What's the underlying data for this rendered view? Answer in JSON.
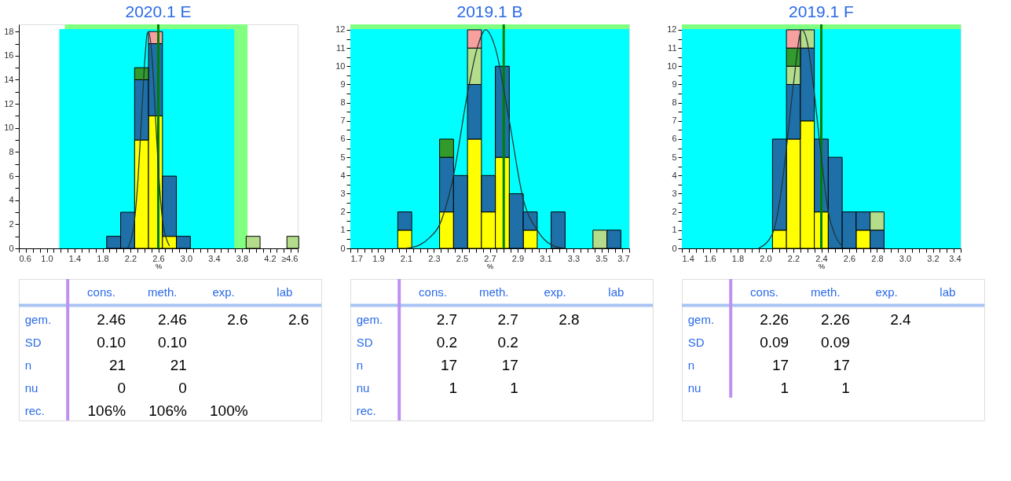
{
  "chart_data": [
    {
      "type": "bar",
      "title": "2020.1 E",
      "xlabel": "%",
      "stacked": true,
      "x": [
        1.96,
        2.16,
        2.36,
        2.56,
        2.76,
        2.96,
        3.16,
        3.36,
        3.56,
        3.76,
        3.96,
        4.16,
        4.36,
        4.53
      ],
      "series": [
        {
          "color": "#ffff00",
          "values": [
            null,
            null,
            9,
            11,
            1,
            null,
            null,
            null,
            null,
            null,
            null,
            null,
            null,
            null
          ]
        },
        {
          "color": "#1f70a8",
          "values": [
            1,
            3,
            5,
            6,
            5,
            1,
            null,
            null,
            null,
            null,
            null,
            null,
            null,
            null
          ]
        },
        {
          "color": "#b3dd8a",
          "values": [
            null,
            null,
            null,
            null,
            null,
            null,
            null,
            null,
            null,
            null,
            1,
            null,
            null,
            1
          ]
        },
        {
          "color": "#339a2c",
          "values": [
            null,
            null,
            1,
            null,
            null,
            null,
            null,
            null,
            null,
            null,
            null,
            null,
            null,
            null
          ]
        },
        {
          "color": "#f8a0a0",
          "values": [
            null,
            null,
            null,
            1,
            null,
            null,
            null,
            null,
            null,
            null,
            null,
            null,
            null,
            null
          ]
        },
        {
          "type": "line",
          "color": "#203838",
          "x": [
            2.16,
            2.26,
            2.31,
            2.36,
            2.41,
            2.44,
            2.46,
            2.51,
            2.56,
            2.61,
            2.66,
            2.76
          ],
          "values": [
            0,
            2.4,
            5.8,
            10.9,
            15.9,
            17.8,
            18,
            15.9,
            10.9,
            5.8,
            2.4,
            0.2
          ]
        }
      ],
      "xlim": [
        0.6,
        4.6
      ],
      "xticks": [
        0.6,
        {
          "value": 0.7,
          "label": null
        },
        {
          "value": 0.8,
          "label": null
        },
        {
          "value": 0.9,
          "label": null
        },
        {
          "value": 1.0,
          "label": "1.0"
        },
        {
          "value": 1.1,
          "label": null
        },
        {
          "value": 1.2,
          "label": null
        },
        {
          "value": 1.3,
          "label": null
        },
        1.4,
        {
          "value": 1.5,
          "label": null
        },
        {
          "value": 1.6,
          "label": null
        },
        {
          "value": 1.7,
          "label": null
        },
        1.8,
        {
          "value": 1.9,
          "label": null
        },
        {
          "value": 2.0,
          "label": null
        },
        {
          "value": 2.1,
          "label": null
        },
        2.2,
        {
          "value": 2.3,
          "label": null
        },
        {
          "value": 2.4,
          "label": null
        },
        {
          "value": 2.5,
          "label": null
        },
        2.6,
        {
          "value": 2.7,
          "label": null
        },
        {
          "value": 2.8,
          "label": null
        },
        {
          "value": 2.9,
          "label": null
        },
        {
          "value": 3.0,
          "label": "3.0"
        },
        {
          "value": 3.1,
          "label": null
        },
        {
          "value": 3.2,
          "label": null
        },
        {
          "value": 3.3,
          "label": null
        },
        3.4,
        {
          "value": 3.5,
          "label": null
        },
        {
          "value": 3.6,
          "label": null
        },
        {
          "value": 3.7,
          "label": null
        },
        3.8,
        {
          "value": 3.9,
          "label": null
        },
        {
          "value": 4.0,
          "label": null
        },
        {
          "value": 4.1,
          "label": null
        },
        4.2,
        {
          "value": 4.3,
          "label": null
        },
        {
          "value": 4.4,
          "label": null
        },
        {
          "value": 4.5,
          "label": null
        },
        {
          "value": 4.6,
          "label": "≥4.6"
        }
      ],
      "ylim": [
        0,
        18.6
      ],
      "yticks": [
        0,
        {
          "value": 1,
          "label": null
        },
        2,
        {
          "value": 3,
          "label": null
        },
        4,
        {
          "value": 5,
          "label": null
        },
        6,
        {
          "value": 7,
          "label": null
        },
        8,
        {
          "value": 9,
          "label": null
        },
        10,
        {
          "value": 11,
          "label": null
        },
        12,
        {
          "value": 13,
          "label": null
        },
        14,
        {
          "value": 15,
          "label": null
        },
        16,
        {
          "value": 17,
          "label": null
        },
        18
      ],
      "bands": [
        {
          "axis": "x",
          "from": 1.26,
          "to": 3.88,
          "color": "#80ff80"
        },
        {
          "axis": "x",
          "from": 1.18,
          "to": 3.69,
          "color": "#00ffff"
        }
      ],
      "ref_lines": [
        {
          "axis": "x",
          "value": 2.6,
          "color": "#008000"
        }
      ]
    },
    {
      "type": "other",
      "categories": [
        "cons.",
        "meth.",
        "exp.",
        "lab"
      ],
      "y_categories": [
        "gem.",
        "SD",
        "n",
        "nu",
        "rec."
      ],
      "cell_labels": [
        [
          "2.46",
          "2.46",
          "2.6",
          "2.6"
        ],
        [
          "0.10",
          "0.10",
          null,
          null
        ],
        [
          "21",
          "21",
          null,
          null
        ],
        [
          "0",
          "0",
          null,
          null
        ],
        [
          "106%",
          "106%",
          "100%",
          null
        ]
      ]
    },
    {
      "type": "bar",
      "title": "2019.1 B",
      "xlabel": "%",
      "stacked": true,
      "x": [
        2.09,
        2.19,
        2.29,
        2.39,
        2.49,
        2.59,
        2.69,
        2.79,
        2.89,
        2.99,
        3.09,
        3.19,
        3.29,
        3.39,
        3.49,
        3.59
      ],
      "series": [
        {
          "color": "#ffff00",
          "values": [
            1,
            null,
            null,
            2,
            null,
            6,
            2,
            5,
            null,
            1,
            null,
            null,
            null,
            null,
            null,
            null
          ]
        },
        {
          "color": "#1f70a8",
          "values": [
            1,
            null,
            null,
            3,
            4,
            3,
            2,
            5,
            3,
            1,
            null,
            2,
            null,
            null,
            null,
            1
          ]
        },
        {
          "color": "#b3dd8a",
          "values": [
            null,
            null,
            null,
            null,
            null,
            2,
            null,
            null,
            null,
            null,
            null,
            null,
            null,
            null,
            1,
            null
          ]
        },
        {
          "color": "#339a2c",
          "values": [
            null,
            null,
            null,
            1,
            null,
            null,
            null,
            null,
            null,
            null,
            null,
            null,
            null,
            null,
            null,
            null
          ]
        },
        {
          "color": "#f8a0a0",
          "values": [
            null,
            null,
            null,
            null,
            null,
            1,
            null,
            null,
            null,
            null,
            null,
            null,
            null,
            null,
            null,
            null
          ]
        },
        {
          "type": "line",
          "color": "#203838",
          "x": [
            2.1,
            2.2,
            2.27,
            2.34,
            2.44,
            2.54,
            2.61,
            2.67,
            2.74,
            2.84,
            2.94,
            3.04,
            3.14,
            3.24
          ],
          "values": [
            0,
            0.2,
            0.6,
            1.3,
            4,
            8.5,
            11,
            12,
            11,
            7,
            2.7,
            1,
            0.2,
            0
          ]
        }
      ],
      "xlim": [
        1.7,
        3.7
      ],
      "xticks": [
        1.7,
        {
          "value": 1.75,
          "label": null
        },
        {
          "value": 1.8,
          "label": null
        },
        {
          "value": 1.85,
          "label": null
        },
        1.9,
        {
          "value": 1.95,
          "label": null
        },
        {
          "value": 2.0,
          "label": null
        },
        {
          "value": 2.05,
          "label": null
        },
        2.1,
        {
          "value": 2.15,
          "label": null
        },
        {
          "value": 2.2,
          "label": null
        },
        {
          "value": 2.25,
          "label": null
        },
        2.3,
        {
          "value": 2.35,
          "label": null
        },
        {
          "value": 2.4,
          "label": null
        },
        {
          "value": 2.45,
          "label": null
        },
        2.5,
        {
          "value": 2.55,
          "label": null
        },
        {
          "value": 2.6,
          "label": null
        },
        {
          "value": 2.65,
          "label": null
        },
        2.7,
        {
          "value": 2.75,
          "label": null
        },
        {
          "value": 2.8,
          "label": null
        },
        {
          "value": 2.85,
          "label": null
        },
        2.9,
        {
          "value": 2.95,
          "label": null
        },
        {
          "value": 3.0,
          "label": null
        },
        {
          "value": 3.05,
          "label": null
        },
        3.1,
        {
          "value": 3.15,
          "label": null
        },
        {
          "value": 3.2,
          "label": null
        },
        {
          "value": 3.25,
          "label": null
        },
        3.3,
        {
          "value": 3.35,
          "label": null
        },
        {
          "value": 3.4,
          "label": null
        },
        {
          "value": 3.45,
          "label": null
        },
        3.5,
        {
          "value": 3.55,
          "label": null
        },
        {
          "value": 3.6,
          "label": null
        },
        {
          "value": 3.65,
          "label": null
        },
        3.7
      ],
      "ylim": [
        0,
        12.3
      ],
      "yticks": [
        0,
        {
          "value": 0.5,
          "label": null
        },
        1,
        {
          "value": 1.5,
          "label": null
        },
        2,
        {
          "value": 2.5,
          "label": null
        },
        3,
        {
          "value": 3.5,
          "label": null
        },
        4,
        {
          "value": 4.5,
          "label": null
        },
        5,
        {
          "value": 5.5,
          "label": null
        },
        6,
        {
          "value": 6.5,
          "label": null
        },
        7,
        {
          "value": 7.5,
          "label": null
        },
        8,
        {
          "value": 8.5,
          "label": null
        },
        9,
        {
          "value": 9.5,
          "label": null
        },
        10,
        {
          "value": 10.5,
          "label": null
        },
        11,
        {
          "value": 11.5,
          "label": null
        },
        12
      ],
      "bands": [
        {
          "axis": "x",
          "from": 1.7,
          "to": 3.7,
          "color": "#80ff80"
        },
        {
          "axis": "x",
          "from": 1.7,
          "to": 3.7,
          "color": "#00ffff"
        }
      ],
      "ref_lines": [
        {
          "axis": "x",
          "value": 2.8,
          "color": "#008000"
        }
      ]
    },
    {
      "type": "other",
      "categories": [
        "cons.",
        "meth.",
        "exp.",
        "lab"
      ],
      "y_categories": [
        "gem.",
        "SD",
        "n",
        "nu",
        "rec."
      ],
      "cell_labels": [
        [
          "2.7",
          "2.7",
          "2.8",
          null
        ],
        [
          "0.2",
          "0.2",
          null,
          null
        ],
        [
          "17",
          "17",
          null,
          null
        ],
        [
          "1",
          "1",
          null,
          null
        ],
        [
          null,
          null,
          null,
          null
        ]
      ]
    },
    {
      "type": "bar",
      "title": "2019.1 F",
      "xlabel": "%",
      "stacked": true,
      "x": [
        2.1,
        2.2,
        2.3,
        2.4,
        2.5,
        2.6,
        2.7,
        2.8
      ],
      "series": [
        {
          "color": "#ffff00",
          "values": [
            1,
            6,
            7,
            2,
            null,
            null,
            1,
            null
          ]
        },
        {
          "color": "#1f70a8",
          "values": [
            5,
            3,
            4,
            4,
            5,
            2,
            1,
            1
          ]
        },
        {
          "color": "#b3dd8a",
          "values": [
            null,
            1,
            1,
            null,
            null,
            null,
            null,
            1
          ]
        },
        {
          "color": "#339a2c",
          "values": [
            null,
            1,
            null,
            null,
            null,
            null,
            null,
            null
          ]
        },
        {
          "color": "#f8a0a0",
          "values": [
            null,
            1,
            null,
            null,
            null,
            null,
            null,
            null
          ]
        },
        {
          "type": "line",
          "color": "#203838",
          "x": [
            1.95,
            2.05,
            2.1,
            2.15,
            2.2,
            2.26,
            2.3,
            2.35,
            2.4,
            2.45,
            2.5,
            2.55
          ],
          "values": [
            0,
            0.8,
            2.5,
            5.5,
            9,
            12,
            11.3,
            8.5,
            5,
            2,
            0.7,
            0.1
          ]
        }
      ],
      "xlim": [
        1.4,
        3.4
      ],
      "xticks": [
        1.4,
        {
          "value": 1.45,
          "label": null
        },
        {
          "value": 1.5,
          "label": null
        },
        {
          "value": 1.55,
          "label": null
        },
        1.6,
        {
          "value": 1.65,
          "label": null
        },
        {
          "value": 1.7,
          "label": null
        },
        {
          "value": 1.75,
          "label": null
        },
        1.8,
        {
          "value": 1.85,
          "label": null
        },
        {
          "value": 1.9,
          "label": null
        },
        {
          "value": 1.95,
          "label": null
        },
        {
          "value": 2.0,
          "label": "2.0"
        },
        {
          "value": 2.05,
          "label": null
        },
        {
          "value": 2.1,
          "label": null
        },
        {
          "value": 2.15,
          "label": null
        },
        2.2,
        {
          "value": 2.25,
          "label": null
        },
        {
          "value": 2.3,
          "label": null
        },
        {
          "value": 2.35,
          "label": null
        },
        2.4,
        {
          "value": 2.45,
          "label": null
        },
        {
          "value": 2.5,
          "label": null
        },
        {
          "value": 2.55,
          "label": null
        },
        2.6,
        {
          "value": 2.65,
          "label": null
        },
        {
          "value": 2.7,
          "label": null
        },
        {
          "value": 2.75,
          "label": null
        },
        2.8,
        {
          "value": 2.85,
          "label": null
        },
        {
          "value": 2.9,
          "label": null
        },
        {
          "value": 2.95,
          "label": null
        },
        {
          "value": 3.0,
          "label": "3.0"
        },
        {
          "value": 3.05,
          "label": null
        },
        {
          "value": 3.1,
          "label": null
        },
        {
          "value": 3.15,
          "label": null
        },
        3.2,
        {
          "value": 3.25,
          "label": null
        },
        {
          "value": 3.3,
          "label": null
        },
        {
          "value": 3.35,
          "label": null
        },
        3.4
      ],
      "ylim": [
        0,
        12.3
      ],
      "yticks": [
        0,
        {
          "value": 0.5,
          "label": null
        },
        1,
        {
          "value": 1.5,
          "label": null
        },
        2,
        {
          "value": 2.5,
          "label": null
        },
        3,
        {
          "value": 3.5,
          "label": null
        },
        4,
        {
          "value": 4.5,
          "label": null
        },
        5,
        {
          "value": 5.5,
          "label": null
        },
        6,
        {
          "value": 6.5,
          "label": null
        },
        7,
        {
          "value": 7.5,
          "label": null
        },
        8,
        {
          "value": 8.5,
          "label": null
        },
        9,
        {
          "value": 9.5,
          "label": null
        },
        10,
        {
          "value": 10.5,
          "label": null
        },
        11,
        {
          "value": 11.5,
          "label": null
        },
        12
      ],
      "bands": [
        {
          "axis": "x",
          "from": 1.4,
          "to": 3.4,
          "color": "#80ff80"
        },
        {
          "axis": "x",
          "from": 1.4,
          "to": 3.4,
          "color": "#00ffff"
        }
      ],
      "ref_lines": [
        {
          "axis": "x",
          "value": 2.4,
          "color": "#008000"
        }
      ]
    },
    {
      "type": "other",
      "categories": [
        "cons.",
        "meth.",
        "exp.",
        "lab"
      ],
      "y_categories": [
        "gem.",
        "SD",
        "n",
        "nu"
      ],
      "cell_labels": [
        [
          "2.26",
          "2.26",
          "2.4",
          null
        ],
        [
          "0.09",
          "0.09",
          null,
          null
        ],
        [
          "17",
          "17",
          null,
          null
        ],
        [
          "1",
          "1",
          null,
          null
        ]
      ]
    }
  ]
}
